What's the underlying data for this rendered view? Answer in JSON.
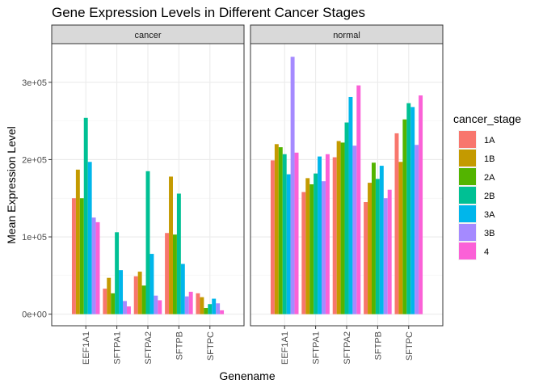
{
  "chart_data": {
    "type": "bar",
    "title": "Gene Expression Levels in Different Cancer Stages",
    "xlabel": "Genename",
    "ylabel": "Mean Expression Level",
    "ylim": [
      -15000,
      350000
    ],
    "yticks": [
      0,
      100000,
      200000,
      300000
    ],
    "ytick_labels": [
      "0e+00",
      "1e+05",
      "2e+05",
      "3e+05"
    ],
    "grid": true,
    "legend_position": "right",
    "legend_title": "cancer_stage",
    "categories": [
      "EEF1A1",
      "SFTPA1",
      "SFTPA2",
      "SFTPB",
      "SFTPC"
    ],
    "series": [
      {
        "name": "1A",
        "color": "#F8766D"
      },
      {
        "name": "1B",
        "color": "#C49A00"
      },
      {
        "name": "2A",
        "color": "#53B400"
      },
      {
        "name": "2B",
        "color": "#00C094"
      },
      {
        "name": "3A",
        "color": "#00B6EB"
      },
      {
        "name": "3B",
        "color": "#A58AFF"
      },
      {
        "name": "4",
        "color": "#FB61D7"
      }
    ],
    "panels": [
      {
        "label": "cancer",
        "values": [
          [
            150000,
            187000,
            150000,
            254000,
            197000,
            125000,
            119000
          ],
          [
            33000,
            47000,
            27000,
            106000,
            57000,
            17000,
            10000
          ],
          [
            49000,
            55000,
            37000,
            185000,
            78000,
            24000,
            18000
          ],
          [
            105000,
            178000,
            103000,
            156000,
            65000,
            23000,
            29000
          ],
          [
            27000,
            22000,
            8000,
            13000,
            20000,
            14000,
            5000
          ]
        ]
      },
      {
        "label": "normal",
        "values": [
          [
            199000,
            220000,
            216000,
            207000,
            181000,
            333000,
            209000
          ],
          [
            158000,
            176000,
            168000,
            182000,
            204000,
            172000,
            207000
          ],
          [
            203000,
            224000,
            222000,
            248000,
            281000,
            218000,
            296000
          ],
          [
            145000,
            170000,
            196000,
            175000,
            192000,
            150000,
            161000
          ],
          [
            234000,
            197000,
            252000,
            273000,
            268000,
            219000,
            283000
          ]
        ]
      }
    ]
  }
}
